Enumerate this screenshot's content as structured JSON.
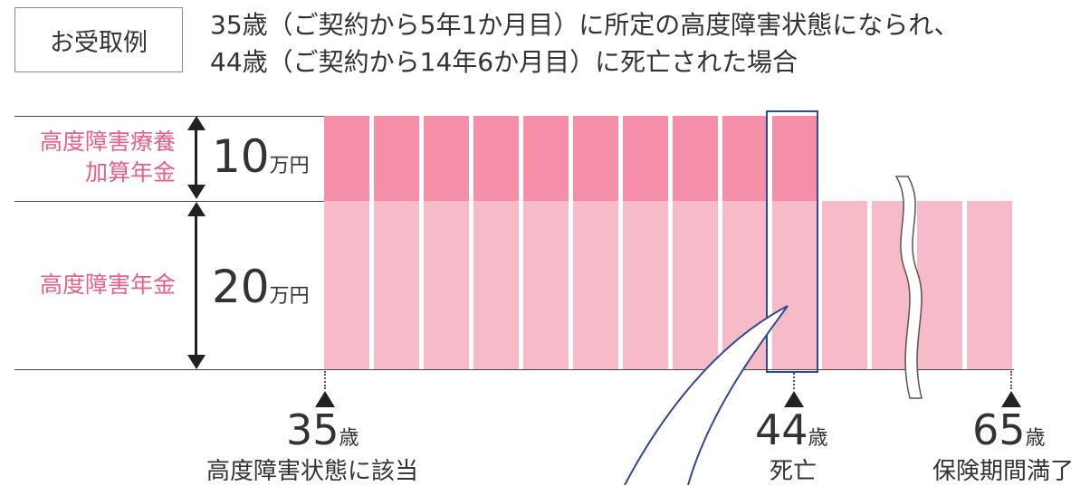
{
  "example": {
    "label": "お受取例",
    "caption_line1": "35歳（ご契約から5年1か月目）に所定の高度障害状態になられ、",
    "caption_line2": "44歳（ご契約から14年6か月目）に死亡された場合"
  },
  "labels": {
    "top_line1": "高度障害療養",
    "top_line2": "加算年金",
    "top_amount_num": "10",
    "top_amount_unit": "万円",
    "bottom": "高度障害年金",
    "bottom_amount_num": "20",
    "bottom_amount_unit": "万円"
  },
  "timeline": {
    "start_age": "35",
    "start_desc": "高度障害状態に該当",
    "death_age": "44",
    "death_desc": "死亡",
    "end_age": "65",
    "end_desc": "保険期間満了",
    "age_unit": "歳"
  },
  "colors": {
    "top_bar": "#f48fa7",
    "bottom_bar": "#f7bac8",
    "label_pink": "#e8608a",
    "highlight": "#2f4a8f"
  }
}
